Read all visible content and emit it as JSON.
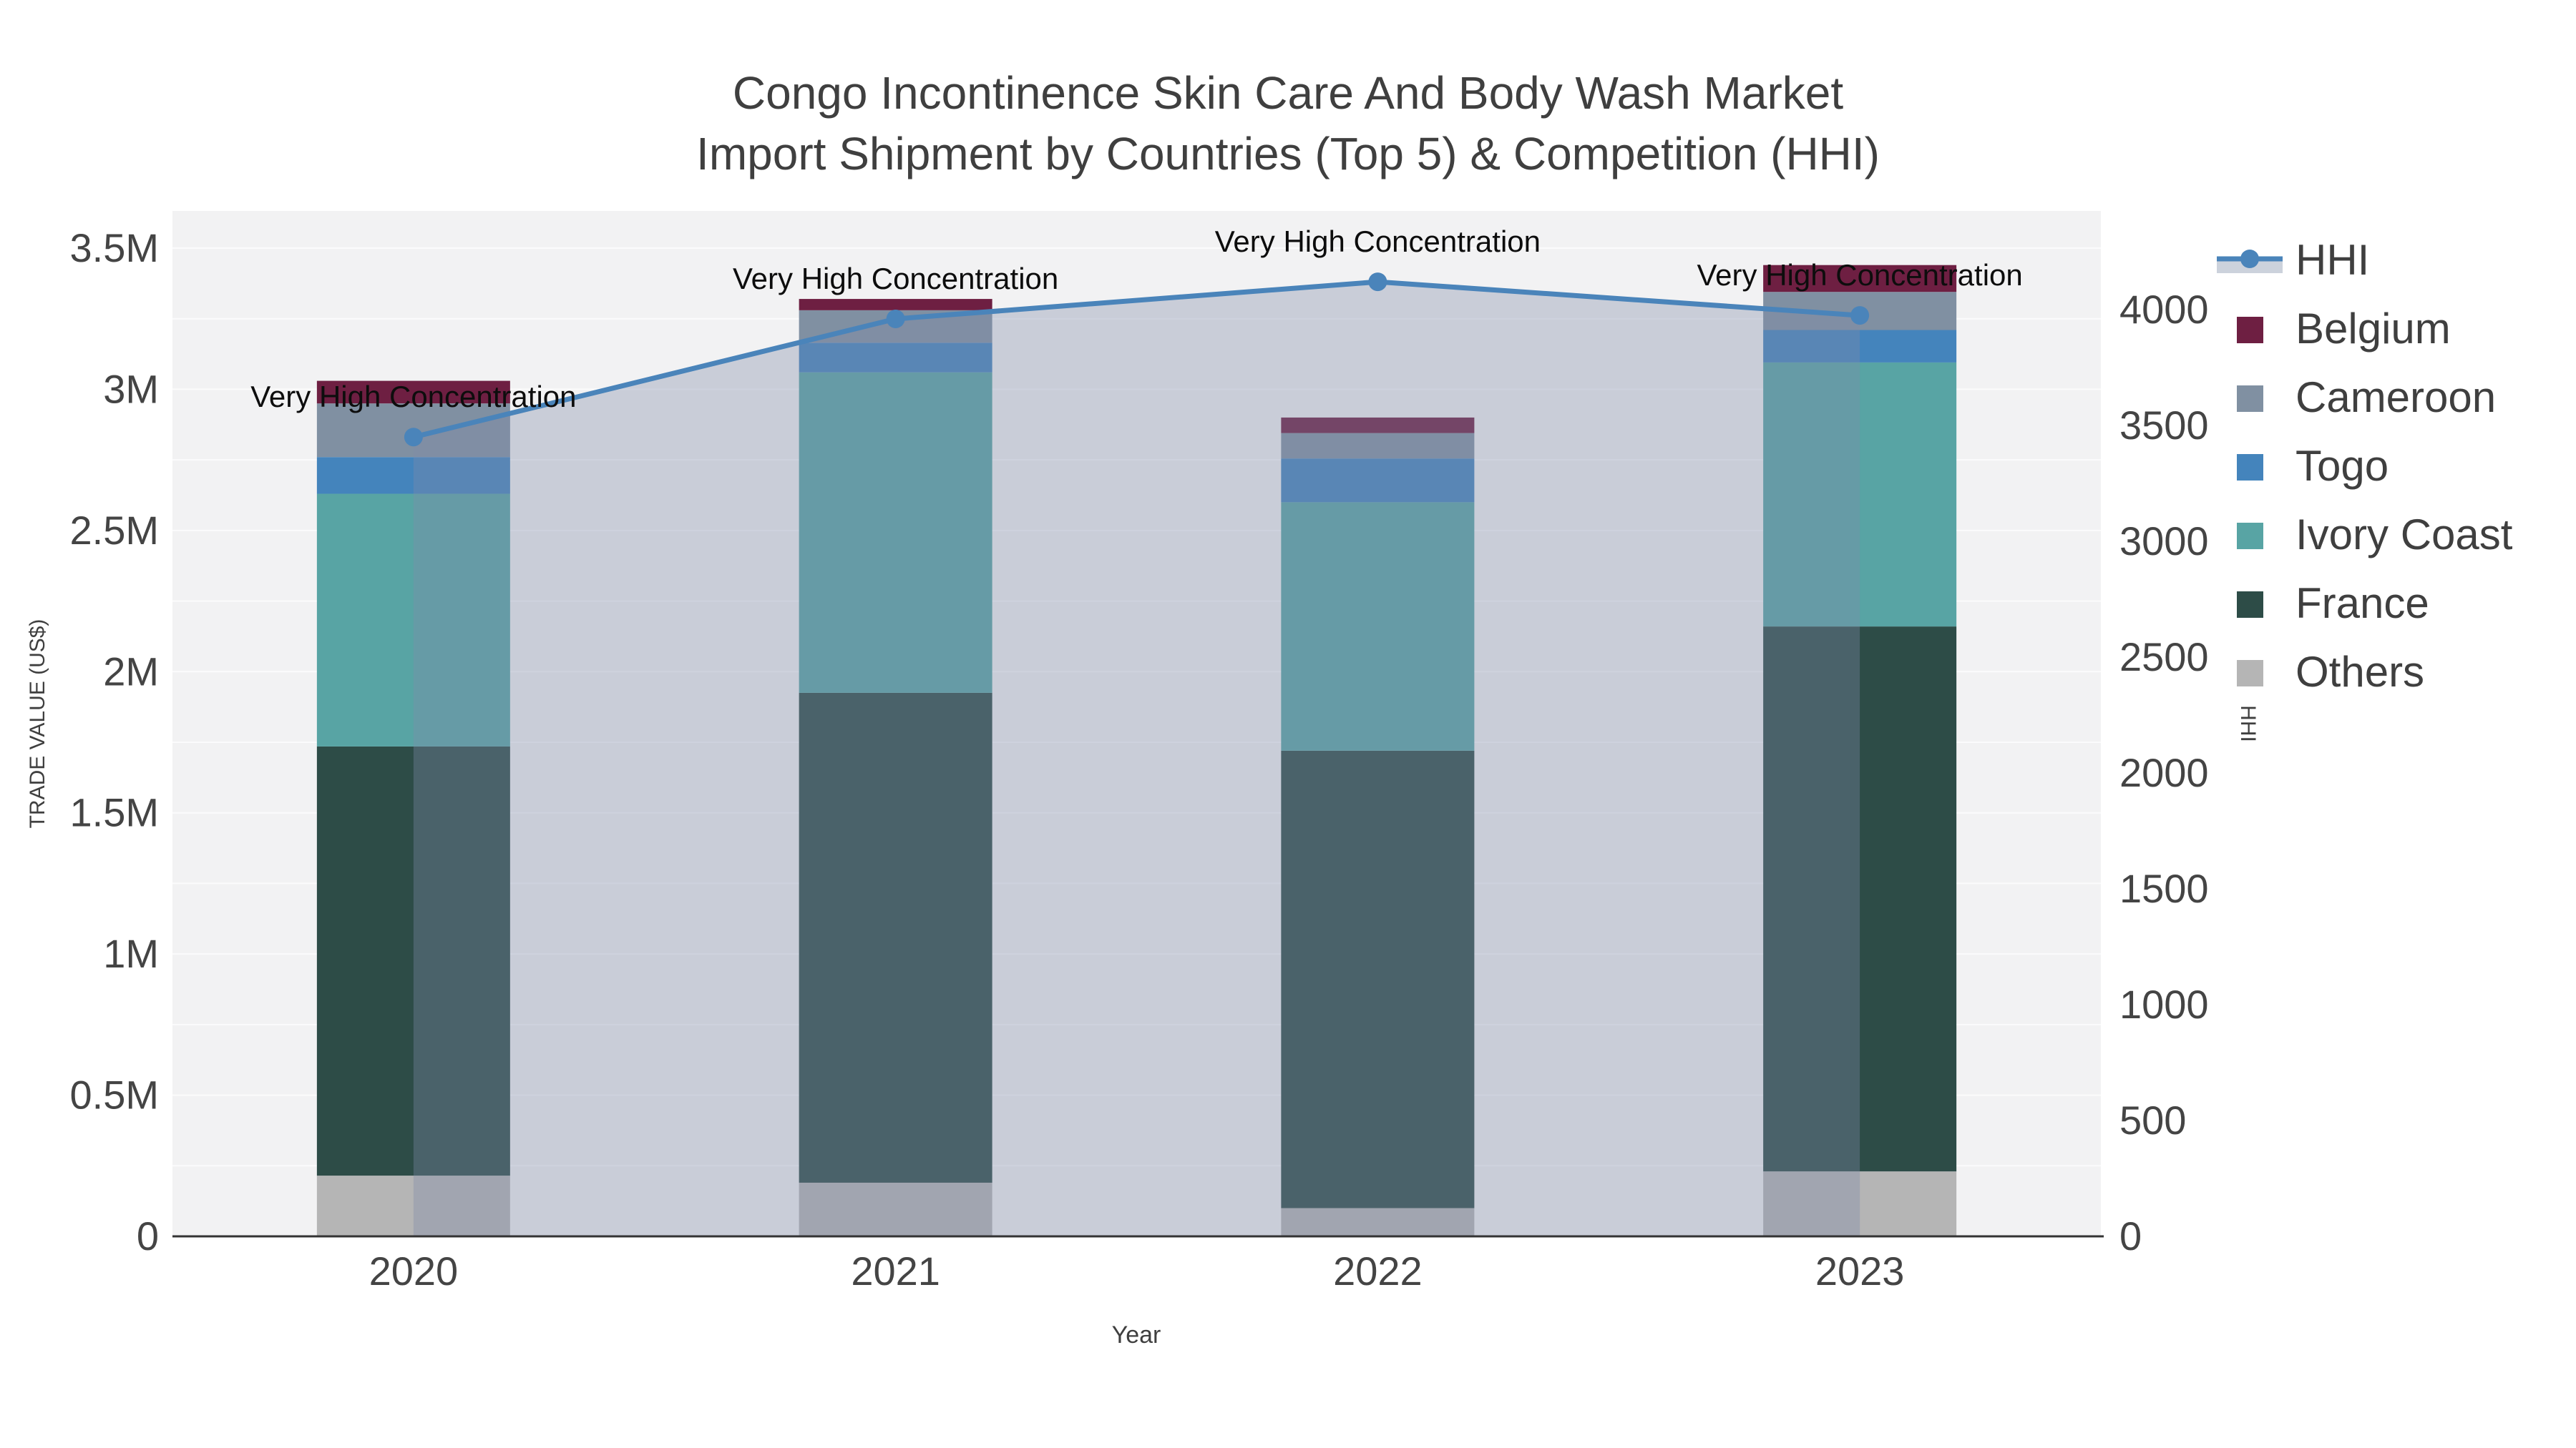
{
  "title": {
    "line1": "Congo Incontinence Skin Care And Body Wash Market",
    "line2": "Import Shipment by Countries (Top 5) & Competition (HHI)"
  },
  "axes": {
    "x": {
      "label": "Year",
      "tick_labels": [
        "2020",
        "2021",
        "2022",
        "2023"
      ]
    },
    "y_left": {
      "label": "TRADE VALUE (US$)",
      "tick_labels": [
        "0",
        "0.5M",
        "1M",
        "1.5M",
        "2M",
        "2.5M",
        "3M",
        "3.5M"
      ],
      "tick_values_m": [
        0,
        0.5,
        1,
        1.5,
        2,
        2.5,
        3,
        3.5
      ],
      "grid_step_m": 0.25,
      "max_m": 3.63
    },
    "y_right": {
      "label": "HHI",
      "tick_labels": [
        "0",
        "500",
        "1000",
        "1500",
        "2000",
        "2500",
        "3000",
        "3500",
        "4000"
      ],
      "tick_values": [
        0,
        500,
        1000,
        1500,
        2000,
        2500,
        3000,
        3500,
        4000
      ],
      "max": 4430
    }
  },
  "legend": {
    "items": [
      {
        "label": "HHI",
        "type": "line",
        "color": "#4a84ba",
        "band_color": "#ccd2dc"
      },
      {
        "label": "Belgium",
        "type": "swatch",
        "color": "#6e1f42"
      },
      {
        "label": "Cameroon",
        "type": "swatch",
        "color": "#8090a2"
      },
      {
        "label": "Togo",
        "type": "swatch",
        "color": "#4484bc"
      },
      {
        "label": "Ivory Coast",
        "type": "swatch",
        "color": "#58a4a4"
      },
      {
        "label": "France",
        "type": "swatch",
        "color": "#2d4c47"
      },
      {
        "label": "Others",
        "type": "swatch",
        "color": "#b5b5b5"
      }
    ]
  },
  "chart_data": {
    "type": "bar",
    "subtype": "stacked-bars-with-line-overlay",
    "title": "Congo Incontinence Skin Care And Body Wash Market Import Shipment by Countries (Top 5) & Competition (HHI)",
    "xlabel": "Year",
    "ylabel_left": "TRADE VALUE (US$)",
    "ylabel_right": "HHI",
    "categories": [
      "2020",
      "2021",
      "2022",
      "2023"
    ],
    "stack_order_bottom_to_top": [
      "Others",
      "France",
      "Ivory Coast",
      "Togo",
      "Cameroon",
      "Belgium"
    ],
    "series": [
      {
        "name": "Others",
        "color": "#b5b5b5",
        "values_usd_m": [
          0.215,
          0.19,
          0.1,
          0.23
        ]
      },
      {
        "name": "France",
        "color": "#2d4c47",
        "values_usd_m": [
          1.52,
          1.735,
          1.62,
          1.93
        ]
      },
      {
        "name": "Ivory Coast",
        "color": "#58a4a4",
        "values_usd_m": [
          0.895,
          1.135,
          0.88,
          0.935
        ]
      },
      {
        "name": "Togo",
        "color": "#4484bc",
        "values_usd_m": [
          0.13,
          0.105,
          0.155,
          0.115
        ]
      },
      {
        "name": "Cameroon",
        "color": "#8090a2",
        "values_usd_m": [
          0.19,
          0.115,
          0.09,
          0.135
        ]
      },
      {
        "name": "Belgium",
        "color": "#6e1f42",
        "values_usd_m": [
          0.08,
          0.04,
          0.055,
          0.095
        ]
      }
    ],
    "bar_totals_usd_m": [
      3.03,
      3.32,
      2.9,
      3.44
    ],
    "hhi_line": {
      "name": "HHI",
      "values": [
        3450,
        3960,
        4120,
        3975
      ],
      "line_color": "#4a84ba",
      "fill_color": "rgba(128,138,168,0.36)"
    },
    "annotations": [
      "Very High Concentration",
      "Very High Concentration",
      "Very High Concentration",
      "Very High Concentration"
    ],
    "ylim_left_m": [
      0,
      3.63
    ],
    "ylim_right": [
      0,
      4430
    ],
    "grid": true,
    "legend_position": "right"
  },
  "colors": {
    "plot_bg": "#f2f2f3",
    "grid_line": "#fbfbfc",
    "axis_line": "#333333",
    "title_text": "#3f3f3f",
    "tick_text": "#444444",
    "annotation_text": "#0d0d0d"
  }
}
